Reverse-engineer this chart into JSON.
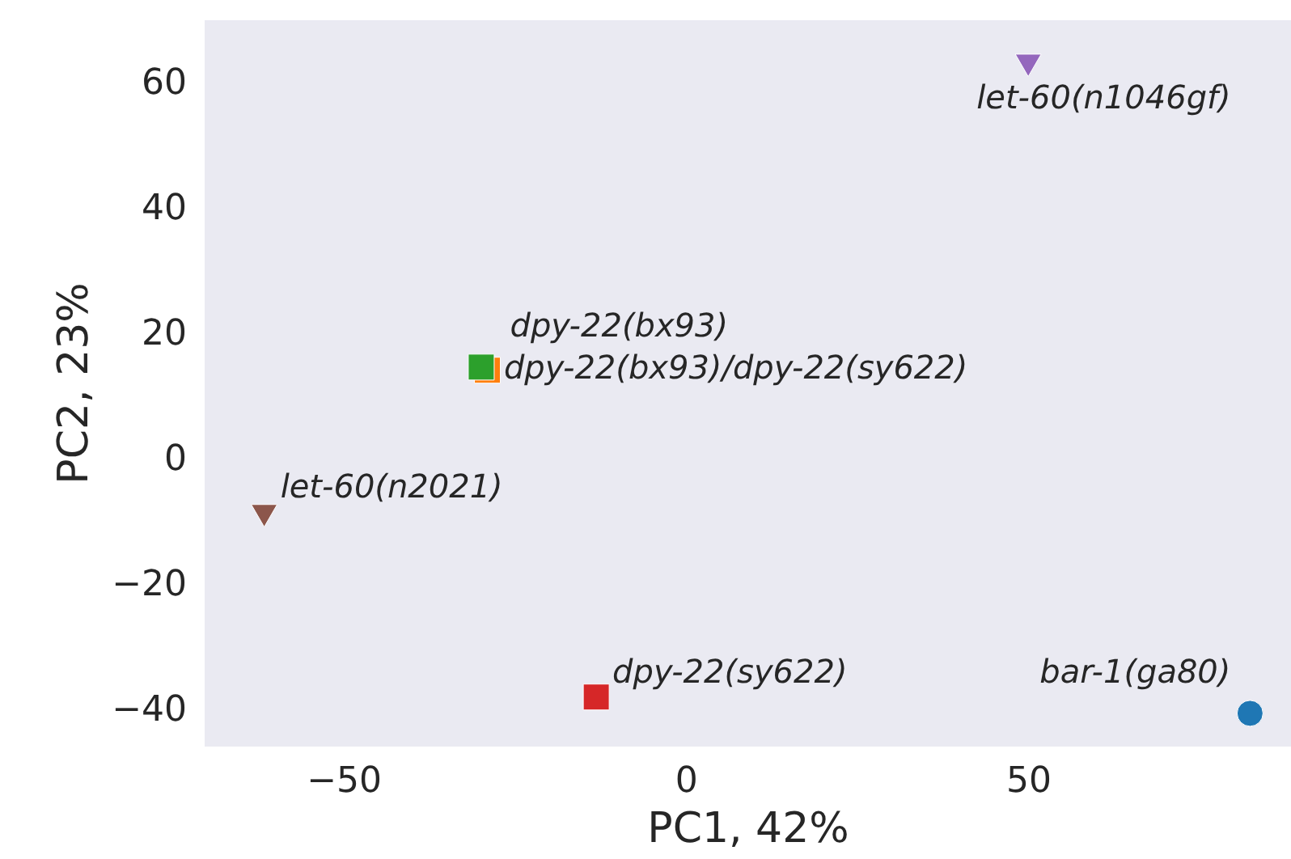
{
  "chart_data": {
    "type": "scatter",
    "xlabel": "PC1, 42%",
    "ylabel": "PC2, 23%",
    "xlim": [
      -70.4,
      88.4
    ],
    "ylim": [
      -46.3,
      69.5
    ],
    "xticks": [
      {
        "value": -50,
        "label": "−50"
      },
      0,
      50
    ],
    "yticks": [
      {
        "value": -40,
        "label": "−40"
      },
      {
        "value": -20,
        "label": "−20"
      },
      0,
      20,
      40,
      60
    ],
    "grid": false,
    "series": [
      {
        "name": "bar-1(ga80)",
        "color": "#1f77b4",
        "marker": "circle",
        "x": [
          82.3
        ],
        "values": [
          -41.0
        ]
      },
      {
        "name": "dpy-22(bx93)",
        "color": "#ff7f0e",
        "marker": "square",
        "x": [
          -29.1
        ],
        "values": [
          13.7
        ]
      },
      {
        "name": "dpy-22(bx93)/dpy-22(sy622)",
        "color": "#2ca02c",
        "marker": "square",
        "x": [
          -30.0
        ],
        "values": [
          14.2
        ]
      },
      {
        "name": "dpy-22(sy622)",
        "color": "#d62728",
        "marker": "square",
        "x": [
          -13.2
        ],
        "values": [
          -38.4
        ]
      },
      {
        "name": "let-60(n1046gf)",
        "color": "#9467bd",
        "marker": "triangle",
        "x": [
          49.9
        ],
        "values": [
          62.9
        ]
      },
      {
        "name": "let-60(n2021)",
        "color": "#8c564b",
        "marker": "triangle",
        "x": [
          -61.7
        ],
        "values": [
          -8.9
        ]
      }
    ]
  }
}
